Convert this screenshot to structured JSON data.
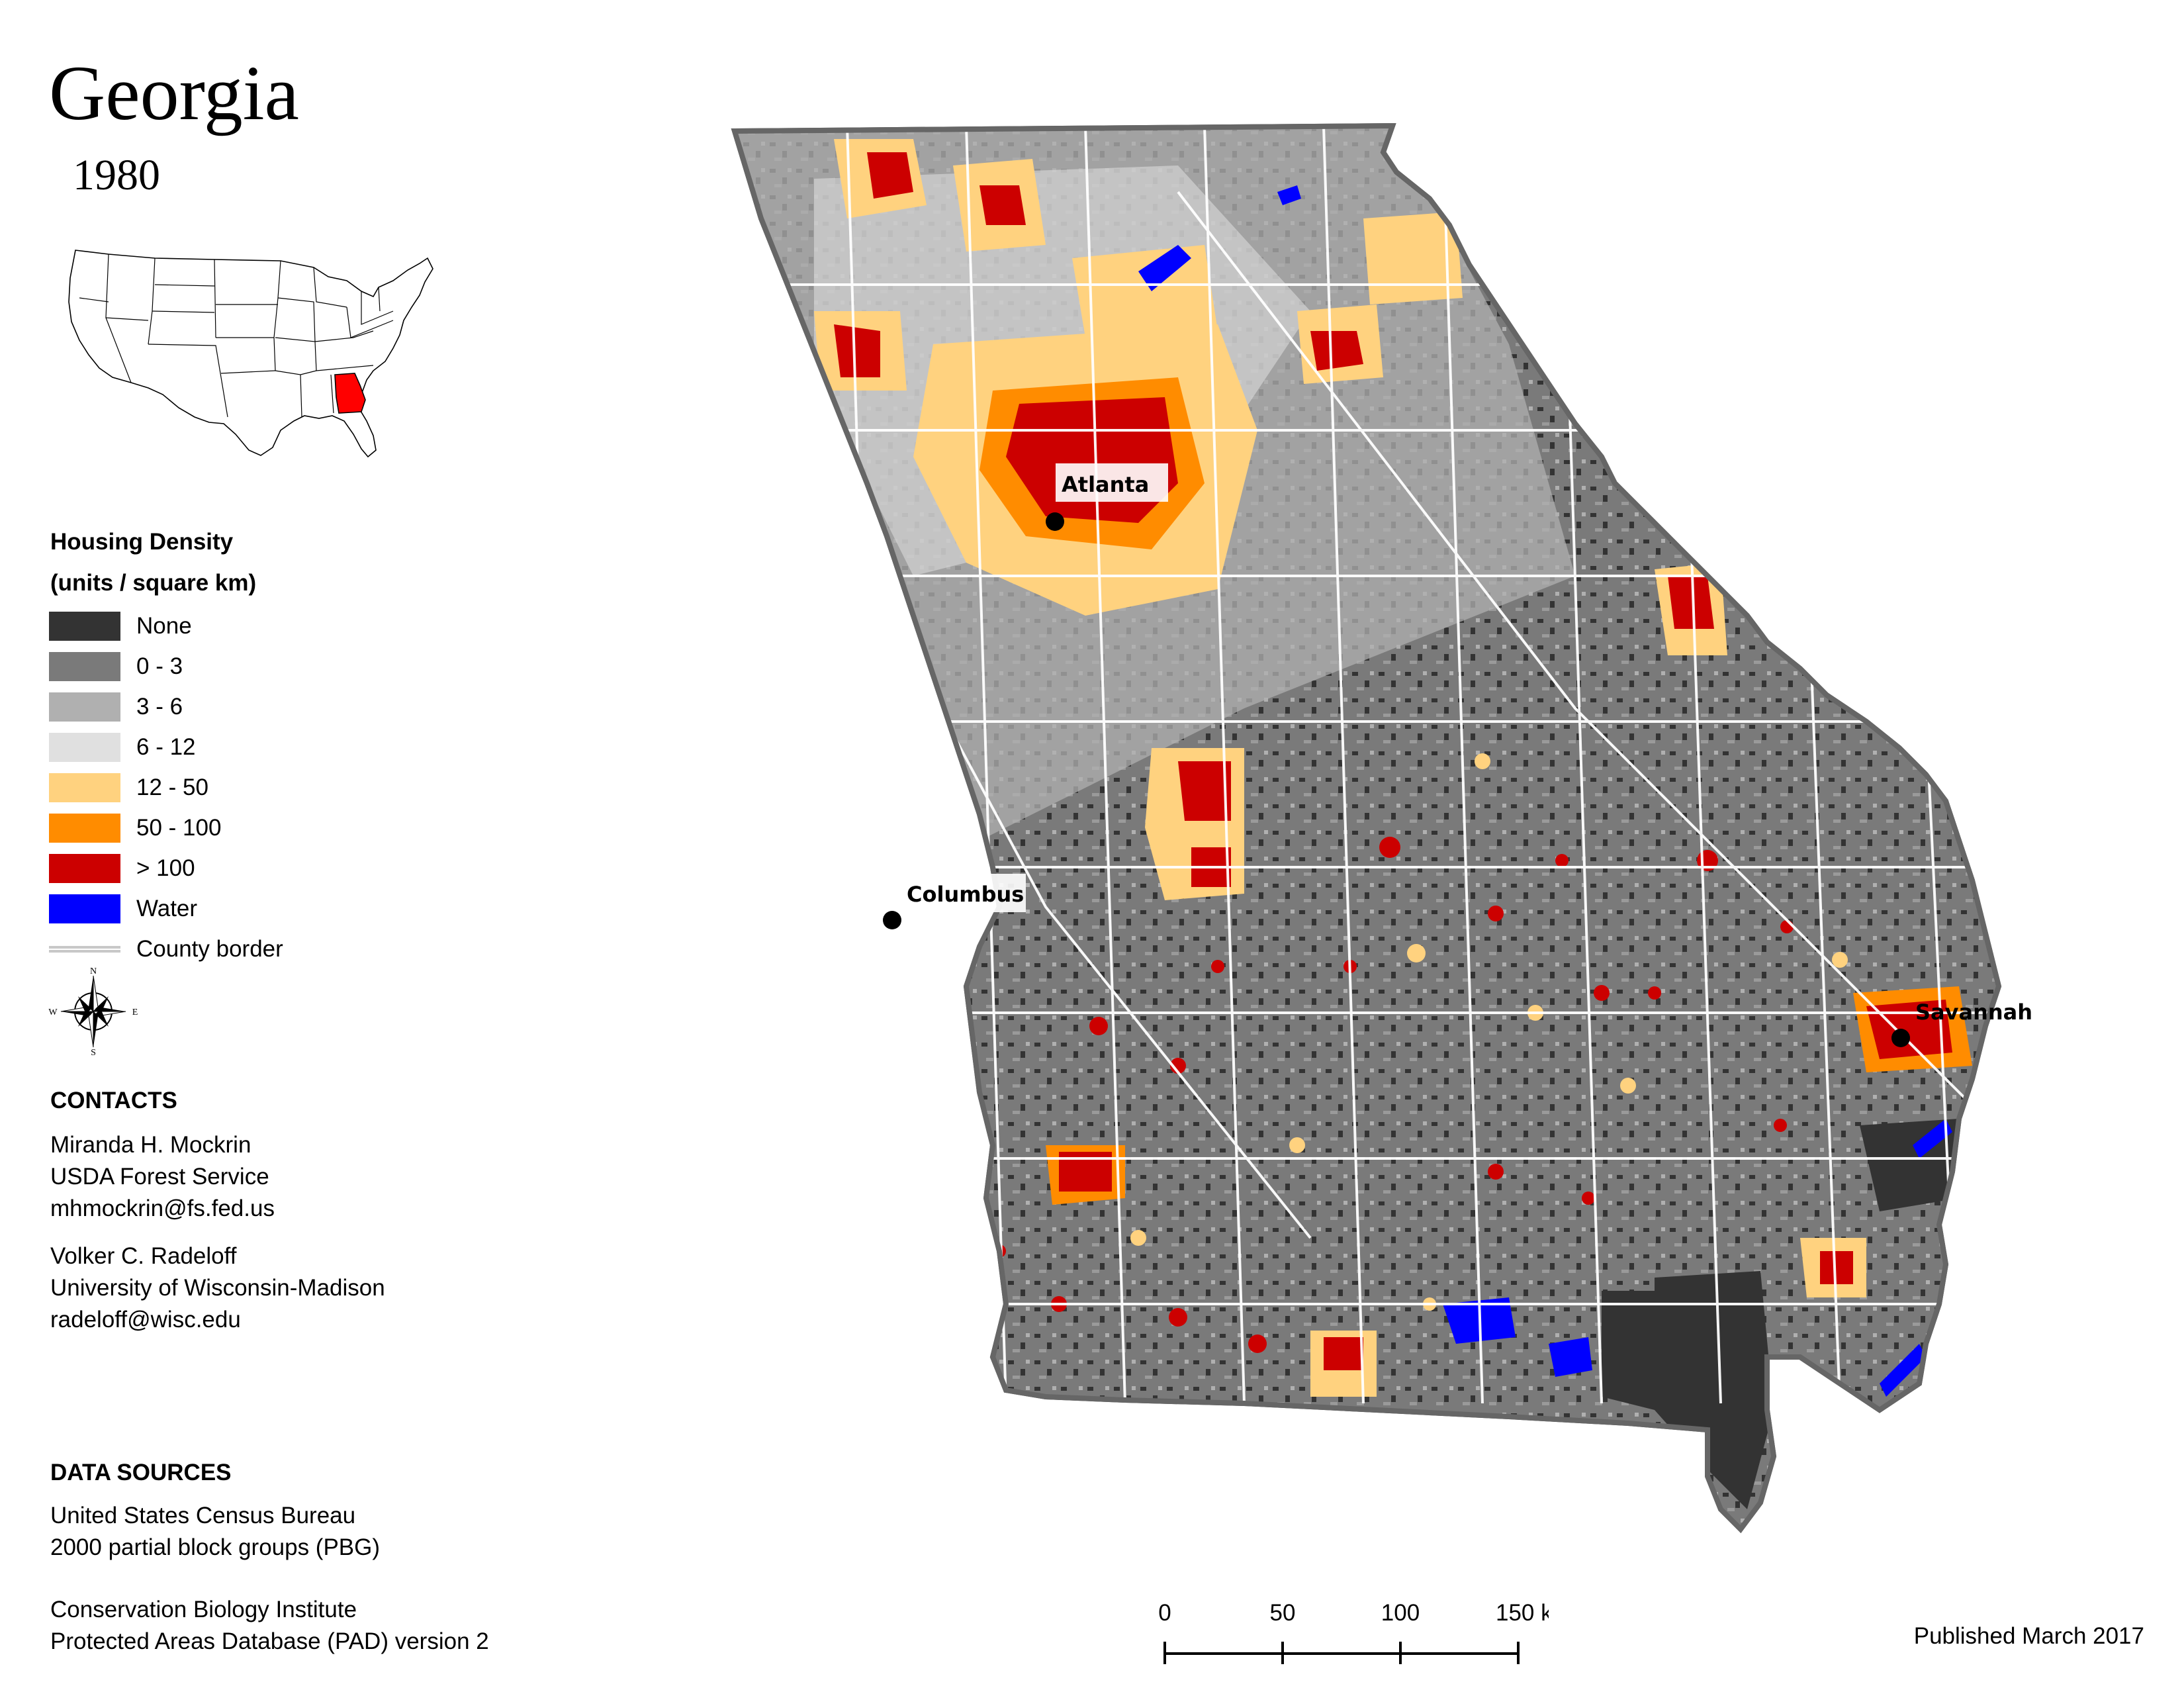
{
  "title": "Georgia",
  "year": "1980",
  "legend": {
    "title_line1": "Housing Density",
    "title_line2": "(units / square km)",
    "items": [
      {
        "label": "None",
        "color": "#333333"
      },
      {
        "label": "0 - 3",
        "color": "#7a7a7a"
      },
      {
        "label": "3 - 6",
        "color": "#b0b0b0"
      },
      {
        "label": "6 - 12",
        "color": "#e0e0e0"
      },
      {
        "label": "12 - 50",
        "color": "#ffd27f"
      },
      {
        "label": "50 - 100",
        "color": "#ff8c00"
      },
      {
        "label": "> 100",
        "color": "#cc0000"
      },
      {
        "label": "Water",
        "color": "#0000ff"
      }
    ],
    "county_border_label": "County border"
  },
  "compass": {
    "n": "N",
    "s": "S",
    "e": "E",
    "w": "W"
  },
  "contacts": {
    "title": "CONTACTS",
    "person1": {
      "name": "Miranda H. Mockrin",
      "org": "USDA Forest Service",
      "email": "mhmockrin@fs.fed.us"
    },
    "person2": {
      "name": "Volker C. Radeloff",
      "org": "University of Wisconsin-Madison",
      "email": "radeloff@wisc.edu"
    }
  },
  "data_sources": {
    "title": "DATA SOURCES",
    "source1_line1": "United States Census Bureau",
    "source1_line2": "2000 partial block groups (PBG)",
    "source2_line1": "Conservation Biology Institute",
    "source2_line2": "Protected Areas Database (PAD) version 2"
  },
  "cities": {
    "atlanta": "Atlanta",
    "columbus": "Columbus",
    "savannah": "Savannah"
  },
  "scale": {
    "ticks": [
      "0",
      "50",
      "100",
      "150 km"
    ]
  },
  "published": "Published March 2017"
}
